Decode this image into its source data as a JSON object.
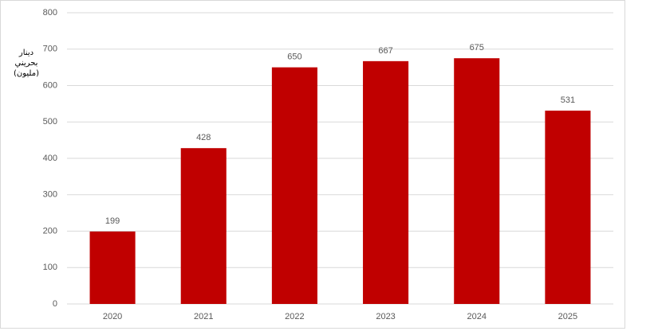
{
  "chart_data": {
    "type": "bar",
    "ylabel": "دينار بحريني (مليون)",
    "categories": [
      "2020",
      "2021",
      "2022",
      "2023",
      "2024",
      "2025"
    ],
    "values": [
      199,
      428,
      650,
      667,
      675,
      531
    ],
    "color": "#c00000",
    "ylim": [
      0,
      800
    ],
    "yticks": [
      0,
      100,
      200,
      300,
      400,
      500,
      600,
      700,
      800
    ],
    "grid": true,
    "data_labels": true
  }
}
